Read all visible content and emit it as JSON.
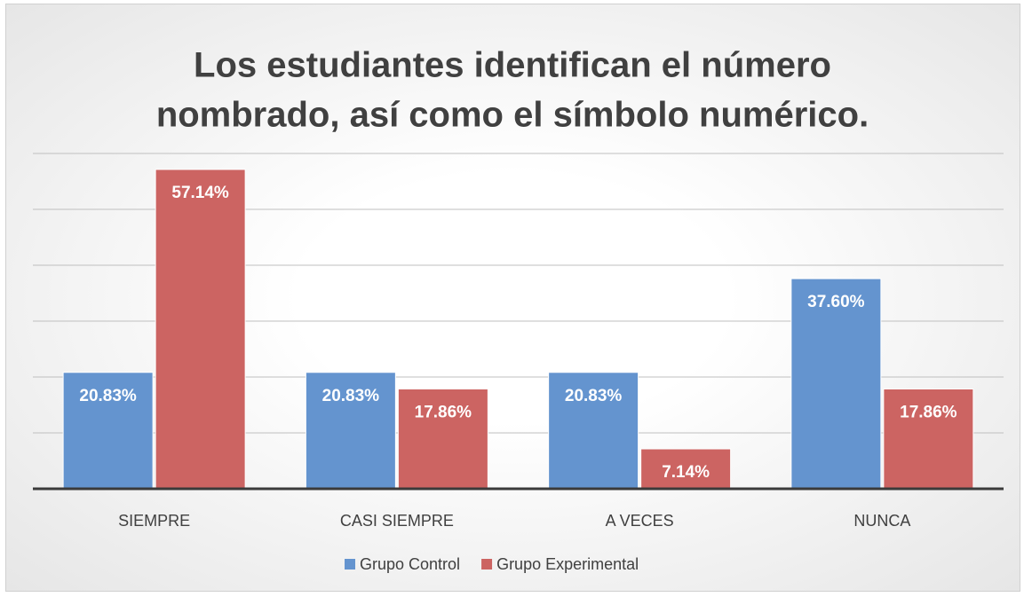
{
  "chart_data": {
    "type": "bar",
    "title": [
      "Los estudiantes identifican el número",
      "nombrado, así como el símbolo numérico."
    ],
    "categories": [
      "SIEMPRE",
      "CASI SIEMPRE",
      "A VECES",
      "NUNCA"
    ],
    "series": [
      {
        "name": "Grupo Control",
        "color": "#6494cf",
        "values": [
          20.83,
          20.83,
          20.83,
          37.6
        ],
        "value_labels": [
          "20.83%",
          "20.83%",
          "20.83%",
          "37.60%"
        ]
      },
      {
        "name": "Grupo Experimental",
        "color": "#cc6462",
        "values": [
          57.14,
          17.86,
          7.14,
          17.86
        ],
        "value_labels": [
          "57.14%",
          "17.86%",
          "7.14%",
          "17.86%"
        ]
      }
    ],
    "ylim": [
      0,
      60
    ],
    "yticks": [
      0,
      10,
      20,
      30,
      40,
      50,
      60
    ],
    "grid": true,
    "legend": "bottom"
  }
}
